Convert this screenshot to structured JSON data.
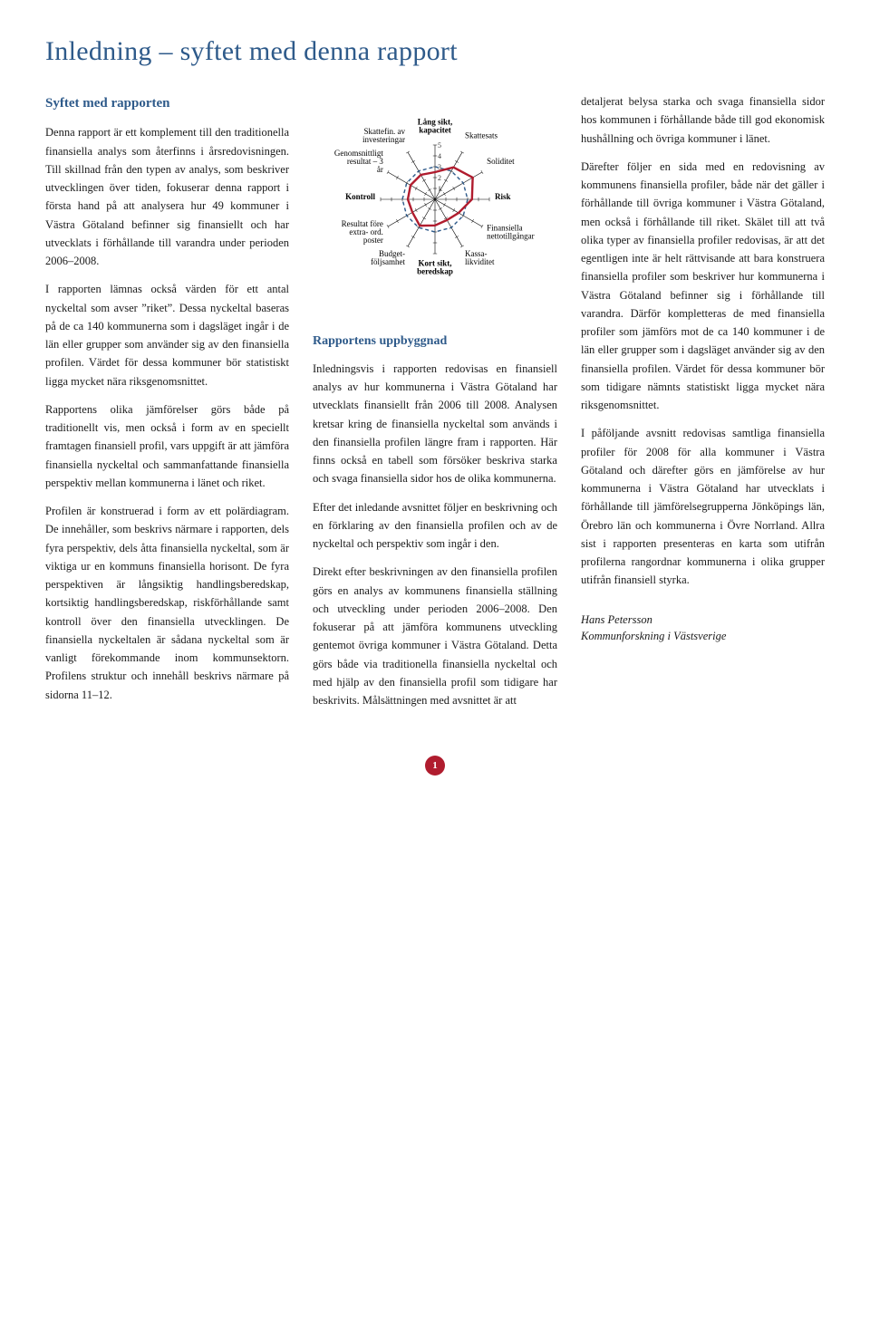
{
  "title": "Inledning – syftet med denna rapport",
  "subtitle": "Syftet med rapporten",
  "col1": {
    "p1": "Denna rapport är ett komplement till den traditionella finansiella analys som återfinns i årsredovisningen. Till skillnad från den typen av analys, som beskriver utvecklingen över tiden, fokuserar denna rapport i första hand på att analysera hur 49 kommuner i Västra Götaland befinner sig finansiellt och har utvecklats i förhållande till varandra under perioden 2006–2008.",
    "p2": "I rapporten lämnas också värden för ett antal nyckeltal som avser ”riket”. Dessa nyckeltal baseras på de ca 140 kommunerna som i dagsläget ingår i de län eller grupper som använder sig av den finansiella profilen. Värdet för dessa kommuner bör statistiskt ligga mycket nära riksgenomsnittet.",
    "p3": "Rapportens olika jämförelser görs både på traditionellt vis, men också i form av en speciellt framtagen finansiell profil, vars uppgift är att jämföra finansiella nyckeltal och sammanfattande finansiella perspektiv mellan kommunerna i länet och riket.",
    "p4": "Profilen är konstruerad i form av ett polärdiagram. De innehåller, som beskrivs närmare i rapporten, dels fyra perspektiv, dels åtta finansiella nyckeltal, som är viktiga ur en kommuns finansiella horisont. De fyra perspektiven är långsiktig handlingsberedskap, kortsiktig handlingsberedskap, riskförhållande samt kontroll över den finansiella utvecklingen. De finansiella nyckeltalen är sådana nyckeltal som är vanligt förekommande inom kommunsektorn. Profilens struktur och innehåll beskrivs närmare på sidorna 11–12."
  },
  "col2": {
    "heading": "Rapportens uppbyggnad",
    "p1": "Inledningsvis i rapporten redovisas en finansiell analys av hur kommunerna i Västra Götaland har utvecklats finansiellt från 2006 till 2008. Analysen kretsar kring de finansiella nyckeltal som används i den finansiella profilen längre fram i rapporten. Här finns också en tabell som försöker beskriva starka och svaga finansiella sidor hos de olika kommunerna.",
    "p2": "Efter det inledande avsnittet följer en beskrivning och en förklaring av den finansiella profilen och av de nyckeltal och perspektiv som ingår i den.",
    "p3": "Direkt efter beskrivningen av den finansiella profilen görs en analys av kommunens finansiella ställning och utveckling under perioden 2006–2008. Den fokuserar på att jämföra kommunens utveckling gentemot övriga kommuner i Västra Götaland. Detta görs både via traditionella finansiella nyckeltal och med hjälp av den finansiella profil som tidigare har beskrivits. Målsättningen med avsnittet är att"
  },
  "col3": {
    "p1": "detaljerat belysa starka och svaga finansiella sidor hos kommunen i förhållande både till god ekonomisk hushållning och övriga kommuner i länet.",
    "p2": "Därefter följer en sida med en redovisning av kommunens finansiella profiler, både när det gäller i förhållande till övriga kommuner i Västra Götaland, men också i förhållande till riket. Skälet till att två olika typer av finansiella profiler redovisas, är att det egentligen inte är helt rättvisande att bara konstruera finansiella profiler som beskriver hur kommunerna i Västra Götaland befinner sig i förhållande till varandra. Därför kompletteras de med finansiella profiler som jämförs mot de ca 140 kommuner i de län eller grupper som i dagsläget använder sig av den finansiella profilen. Värdet för dessa kommuner bör som tidigare nämnts statistiskt ligga mycket nära riksgenomsnittet.",
    "p3": "I påföljande avsnitt redovisas samtliga finansiella profiler för 2008 för alla kommuner i Västra Götaland och därefter görs en jämförelse av hur kommunerna i Västra Götaland har utvecklats i förhållande till jämförelsegrupperna Jönköpings län, Örebro län och kommunerna i Övre Norrland. Allra sist i rapporten presenteras en karta som utifrån profilerna rangordnar kommunerna i olika grupper utifrån finansiell styrka.",
    "author_name": "Hans Petersson",
    "author_org": "Kommunforskning i Västsverige"
  },
  "radar": {
    "type": "radar",
    "axes": [
      "Lång sikt, kapacitet",
      "Skattesats",
      "Soliditet",
      "Risk",
      "Finansiella nettotillgångar",
      "Kassa- likviditet",
      "Kort sikt, beredskap",
      "Budget- följsamhet",
      "Resultat före extra- ord. poster",
      "Kontroll",
      "Genomsnittligt resultat – 3 år",
      "Skattefin. av investeringar"
    ],
    "bold_axes": [
      0,
      3,
      6,
      9
    ],
    "max": 5,
    "ticks": [
      1,
      2,
      3,
      4,
      5
    ],
    "series": [
      {
        "name": "blue",
        "color": "#2e5a8a",
        "dash": "4,3",
        "width": 1.4,
        "values": [
          3,
          3,
          3,
          3,
          3,
          3,
          3,
          3,
          3,
          3,
          3,
          3
        ]
      },
      {
        "name": "red",
        "color": "#b01c2e",
        "dash": "none",
        "width": 2.4,
        "values": [
          2.5,
          3.4,
          4.0,
          3.4,
          2.5,
          2.2,
          2.4,
          2.8,
          2.4,
          2.5,
          2.6,
          2.6
        ]
      }
    ],
    "grid_color": "#000000",
    "background": "#ffffff"
  },
  "page_number": "1",
  "colors": {
    "heading": "#2e5a8a",
    "accent_red": "#b01c2e",
    "text": "#1a1a1a"
  }
}
